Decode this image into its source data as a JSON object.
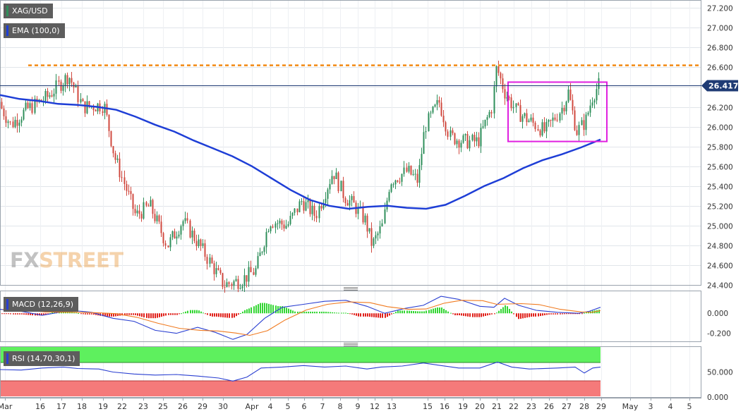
{
  "legends": {
    "symbol": "XAG/USD",
    "ema": "EMA (100,0)",
    "macd": "MACD (12,26,9)",
    "rsi": "RSI (14,70,30,1)"
  },
  "watermark": {
    "fx": "FX",
    "street": "STREET"
  },
  "colors": {
    "bull": "#2f8f5b",
    "bear": "#d0493f",
    "ema": "#1e3ed6",
    "resistance": "#f28a14",
    "box": "#e020e0",
    "price_line": "#1f3b74",
    "price_tag": "#1f3b74",
    "macd_line": "#2a3fd1",
    "signal_line": "#f07a1f",
    "hist_pos": "#33d633",
    "hist_neg": "#e0201a",
    "rsi_line": "#2a3fd1",
    "rsi_overbought_zone": "#5ef05e",
    "rsi_oversold_zone": "#f57a7a"
  },
  "chart_data": {
    "type": "candlestick",
    "symbol": "XAG/USD",
    "current_price": 26.417,
    "price_tag_label": "26.417",
    "y_range": [
      24.4,
      27.28
    ],
    "y_ticks": [
      "27.200",
      "27.000",
      "26.800",
      "26.600",
      "26.400",
      "26.200",
      "26.000",
      "25.800",
      "25.600",
      "25.400",
      "25.200",
      "25.000",
      "24.800",
      "24.600",
      "24.400"
    ],
    "y_tick_values": [
      27.2,
      27.0,
      26.8,
      26.6,
      26.4,
      26.2,
      26.0,
      25.8,
      25.6,
      25.4,
      25.2,
      25.0,
      24.8,
      24.6,
      24.4
    ],
    "x_ticks": [
      "Mar",
      "16",
      "17",
      "18",
      "19",
      "22",
      "23",
      "25",
      "26",
      "29",
      "30",
      "Apr",
      "4",
      "5",
      "6",
      "7",
      "8",
      "9",
      "12",
      "13",
      "15",
      "16",
      "19",
      "20",
      "21",
      "22",
      "23",
      "26",
      "27",
      "28",
      "29",
      "May",
      "3",
      "4",
      "5"
    ],
    "resistance_level": 26.62,
    "range_box": {
      "top": 26.45,
      "bottom": 25.85
    },
    "ema_100": [
      26.32,
      26.28,
      26.26,
      26.23,
      26.22,
      26.2,
      26.17,
      26.1,
      26.02,
      25.95,
      25.86,
      25.78,
      25.7,
      25.6,
      25.48,
      25.36,
      25.26,
      25.2,
      25.17,
      25.19,
      25.2,
      25.18,
      25.17,
      25.21,
      25.3,
      25.4,
      25.48,
      25.58,
      25.66,
      25.72,
      25.79,
      25.87
    ],
    "series": [
      {
        "name": "MACD (12,26,9)",
        "y_ticks": [
          "0.000",
          "-0.200"
        ],
        "y_tick_values": [
          0,
          -0.2
        ],
        "y_range": [
          -0.28,
          0.22
        ]
      },
      {
        "name": "RSI (14,70,30,1)",
        "y_ticks": [
          "50.000",
          "0.000"
        ],
        "y_tick_values": [
          50,
          0
        ],
        "y_range": [
          0,
          100
        ],
        "overbought": 70,
        "oversold": 30
      }
    ]
  }
}
